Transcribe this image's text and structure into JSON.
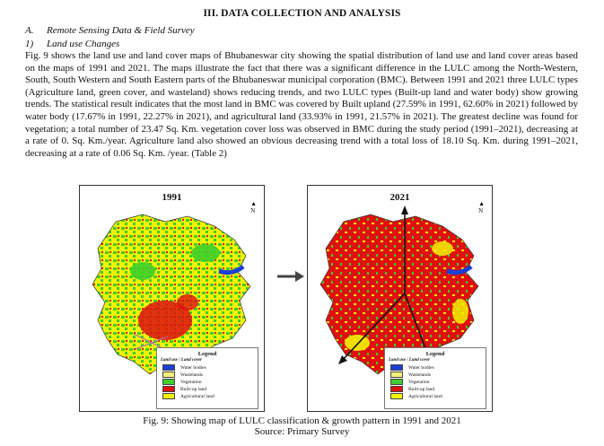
{
  "heading": "III. DATA COLLECTION AND ANALYSIS",
  "subsection_a": {
    "num": "A.",
    "title": "Remote Sensing Data & Field Survey"
  },
  "subsection_1": {
    "num": "1)",
    "title": "Land use Changes"
  },
  "paragraph": "Fig. 9 shows the land use and land cover maps of Bhubaneswar city showing the spatial distribution of land use and land cover areas based on the maps of 1991 and 2021. The maps illustrate the fact that there was a significant difference in the LULC among the North-Western, South, South Western and South Eastern parts of the Bhubaneswar municipal corporation (BMC). Between 1991 and 2021 three LULC types (Agriculture land, green cover, and wasteland) shows reducing trends, and two LULC types (Built-up land and water body) show growing trends. The statistical result indicates that the most land in BMC was covered by Built upland (27.59% in 1991, 62.60% in 2021) followed by water body (17.67% in 1991, 22.27% in 2021), and agricultural land (33.93% in 1991, 21.57% in 2021). The greatest decline was found for vegetation; a total number of 23.47 Sq. Km. vegetation cover loss was observed in BMC during the study period (1991–2021), decreasing at a rate of 0. Sq. Km./year. Agriculture land also showed an obvious decreasing trend with a total loss of 18.10 Sq. Km. during 1991–2021, decreasing at a rate of 0.06 Sq. Km. /year. (Table 2)",
  "maps": {
    "left": {
      "year": "1991"
    },
    "right": {
      "year": "2021"
    }
  },
  "north_label": "N",
  "legend": {
    "title": "Legend",
    "subtitle": "Land use / Land cover",
    "items": [
      {
        "label": "Water bodies",
        "color": "#1a3fd6"
      },
      {
        "label": "Wastelands",
        "color": "#f5f07a"
      },
      {
        "label": "Vegetation",
        "color": "#3ecf2a"
      },
      {
        "label": "Built-up land",
        "color": "#e01010"
      },
      {
        "label": "Agricultural land",
        "color": "#f2f200"
      }
    ]
  },
  "caption": "Fig. 9: Showing map of LULC classification & growth pattern in 1991 and 2021",
  "source": "Source: Primary Survey"
}
